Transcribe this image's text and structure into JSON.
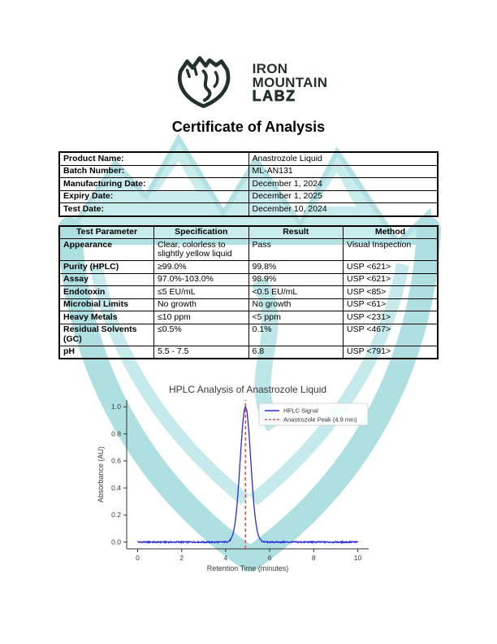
{
  "brand": {
    "line1": "IRON",
    "line2": "MOUNTAIN",
    "line3": "LABZ"
  },
  "header": {
    "title": "Certificate of Analysis"
  },
  "product_table": {
    "rows": [
      {
        "label": "Product Name:",
        "value": "Anastrozole Liquid"
      },
      {
        "label": "Batch Number:",
        "value": "ML-AN131"
      },
      {
        "label": "Manufacturing Date:",
        "value": "December 1, 2024"
      },
      {
        "label": "Expiry Date:",
        "value": "December 1, 2025"
      },
      {
        "label": "Test Date:",
        "value": "December 10, 2024"
      }
    ]
  },
  "results_table": {
    "headers": [
      "Test Parameter",
      "Specification",
      "Result",
      "Method"
    ],
    "rows": [
      [
        "Appearance",
        "Clear, colorless to slightly yellow liquid",
        "Pass",
        "Visual Inspection"
      ],
      [
        "Purity (HPLC)",
        "≥99.0%",
        "99.8%",
        "USP <621>"
      ],
      [
        "Assay",
        "97.0%-103.0%",
        "98.9%",
        "USP <621>"
      ],
      [
        "Endotoxin",
        "≤5 EU/mL",
        "<0.5 EU/mL",
        "USP <85>"
      ],
      [
        "Microbial Limits",
        "No growth",
        "No growth",
        "USP <61>"
      ],
      [
        "Heavy Metals",
        "≤10 ppm",
        "<5 ppm",
        "USP <231>"
      ],
      [
        "Residual Solvents (GC)",
        "≤0.5%",
        "0.1%",
        "USP <467>"
      ],
      [
        "pH",
        "5.5 - 7.5",
        "6.8",
        "USP <791>"
      ]
    ]
  },
  "chart_data": {
    "type": "line",
    "title": "HPLC Analysis of Anastrozole Liquid",
    "xlabel": "Retention Time (minutes)",
    "ylabel": "Absorbance (AU)",
    "xlim": [
      -0.5,
      10.5
    ],
    "ylim": [
      -0.05,
      1.05
    ],
    "xticks": [
      0,
      2,
      4,
      6,
      8,
      10
    ],
    "yticks": [
      0.0,
      0.2,
      0.4,
      0.6,
      0.8,
      1.0
    ],
    "grid": false,
    "legend_position": "upper right",
    "series": [
      {
        "name": "HPLC Signal",
        "kind": "line",
        "color": "#2a2ad9",
        "x_range": [
          0,
          10
        ],
        "baseline": 0.0,
        "noise_amplitude": 0.005,
        "peak_center": 4.9,
        "peak_height": 1.0,
        "peak_sigma": 0.24
      },
      {
        "name": "Anastrozole Peak (4.9 min)",
        "kind": "vline",
        "color": "#e0554b",
        "x": 4.9,
        "style": "dashed"
      }
    ]
  },
  "colors": {
    "brand_ink": "#22302e",
    "watermark_teal": "#aee0e2",
    "watermark_teal_light": "#c6eaeb"
  }
}
